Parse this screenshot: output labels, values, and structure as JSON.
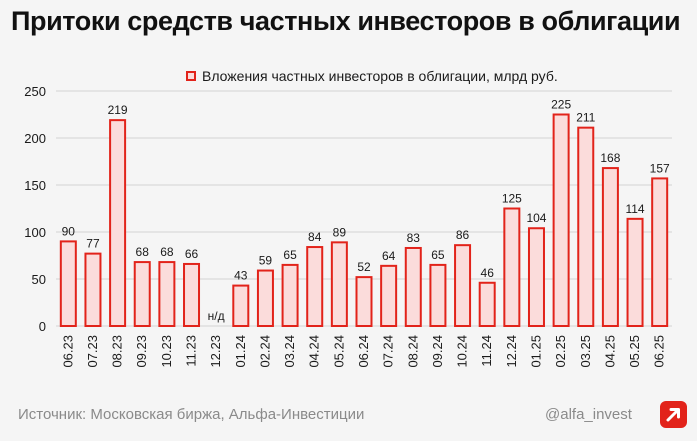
{
  "title": "Притоки средств частных инвесторов в облигации",
  "legend_label": "Вложения частных инвесторов в облигации, млрд руб.",
  "source": "Источник: Московская биржа, Альфа-Инвестиции",
  "handle": "@alfa_invest",
  "logo_icon": "alfa-arrow-logo",
  "colors": {
    "bar_fill": "#fbdcdb",
    "bar_stroke": "#e2231a",
    "grid": "#d4d4d4",
    "text": "#1a1a1a",
    "muted": "#8a8a8a"
  },
  "chart_data": {
    "type": "bar",
    "title": "Притоки средств частных инвесторов в облигации",
    "xlabel": "",
    "ylabel": "",
    "ylim": [
      0,
      250
    ],
    "yticks": [
      0,
      50,
      100,
      150,
      200,
      250
    ],
    "grid": true,
    "legend_position": "top",
    "categories": [
      "06.23",
      "07.23",
      "08.23",
      "09.23",
      "10.23",
      "11.23",
      "12.23",
      "01.24",
      "02.24",
      "03.24",
      "04.24",
      "05.24",
      "06.24",
      "07.24",
      "08.24",
      "09.24",
      "10.24",
      "11.24",
      "12.24",
      "01.25",
      "02.25",
      "03.25",
      "04.25",
      "05.25",
      "06.25"
    ],
    "series": [
      {
        "name": "Вложения частных инвесторов в облигации, млрд руб.",
        "values": [
          90,
          77,
          219,
          68,
          68,
          66,
          null,
          43,
          59,
          65,
          84,
          89,
          52,
          64,
          83,
          65,
          86,
          46,
          125,
          104,
          225,
          211,
          168,
          114,
          157
        ],
        "labels": [
          "90",
          "77",
          "219",
          "68",
          "68",
          "66",
          "н/д",
          "43",
          "59",
          "65",
          "84",
          "89",
          "52",
          "64",
          "83",
          "65",
          "86",
          "46",
          "125",
          "104",
          "225",
          "211",
          "168",
          "114",
          "157"
        ]
      }
    ]
  }
}
